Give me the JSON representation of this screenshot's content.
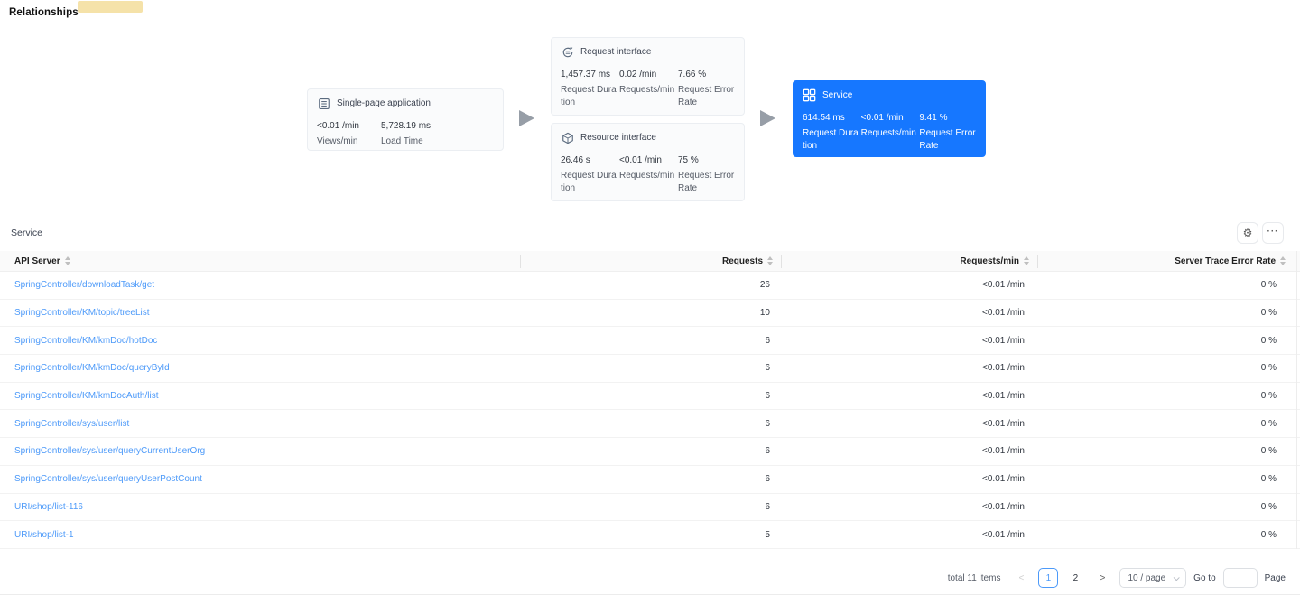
{
  "page": {
    "title": "Relationships"
  },
  "topology": {
    "nodes": [
      {
        "id": "spa",
        "icon": "document-icon",
        "title": "Single-page application",
        "metrics": [
          {
            "value": "<0.01 /min",
            "label": "Views/min"
          },
          {
            "value": "5,728.19 ms",
            "label": "Load Time"
          }
        ]
      },
      {
        "id": "request-interface",
        "icon": "sync-icon",
        "title": "Request interface",
        "metrics": [
          {
            "value": "1,457.37 ms",
            "label": "Request Duration"
          },
          {
            "value": "0.02 /min",
            "label": "Requests/min"
          },
          {
            "value": "7.66 %",
            "label": "Request Error Rate"
          }
        ]
      },
      {
        "id": "resource-interface",
        "icon": "cube-icon",
        "title": "Resource interface",
        "metrics": [
          {
            "value": "26.46 s",
            "label": "Request Duration"
          },
          {
            "value": "<0.01 /min",
            "label": "Requests/min"
          },
          {
            "value": "75 %",
            "label": "Request Error Rate"
          }
        ]
      },
      {
        "id": "service",
        "icon": "grid-icon",
        "title": "Service",
        "selected": true,
        "metrics": [
          {
            "value": "614.54 ms",
            "label": "Request Duration"
          },
          {
            "value": "<0.01 /min",
            "label": "Requests/min"
          },
          {
            "value": "9.41 %",
            "label": "Request Error Rate"
          }
        ]
      }
    ]
  },
  "section": {
    "title": "Service",
    "icons": {
      "settings": "⚙",
      "more": "···"
    }
  },
  "table": {
    "columns": [
      "API Server",
      "Requests",
      "Requests/min",
      "Server Trace Error Rate"
    ],
    "rows": [
      {
        "api": "SpringController/downloadTask/get",
        "requests": "26",
        "rpm": "<0.01 /min",
        "error": "0 %"
      },
      {
        "api": "SpringController/KM/topic/treeList",
        "requests": "10",
        "rpm": "<0.01 /min",
        "error": "0 %"
      },
      {
        "api": "SpringController/KM/kmDoc/hotDoc",
        "requests": "6",
        "rpm": "<0.01 /min",
        "error": "0 %"
      },
      {
        "api": "SpringController/KM/kmDoc/queryById",
        "requests": "6",
        "rpm": "<0.01 /min",
        "error": "0 %"
      },
      {
        "api": "SpringController/KM/kmDocAuth/list",
        "requests": "6",
        "rpm": "<0.01 /min",
        "error": "0 %"
      },
      {
        "api": "SpringController/sys/user/list",
        "requests": "6",
        "rpm": "<0.01 /min",
        "error": "0 %"
      },
      {
        "api": "SpringController/sys/user/queryCurrentUserOrg",
        "requests": "6",
        "rpm": "<0.01 /min",
        "error": "0 %"
      },
      {
        "api": "SpringController/sys/user/queryUserPostCount",
        "requests": "6",
        "rpm": "<0.01 /min",
        "error": "0 %"
      },
      {
        "api": "URI/shop/list-116",
        "requests": "6",
        "rpm": "<0.01 /min",
        "error": "0 %"
      },
      {
        "api": "URI/shop/list-1",
        "requests": "5",
        "rpm": "<0.01 /min",
        "error": "0 %"
      }
    ]
  },
  "pagination": {
    "total_text": "total 11 items",
    "prev_label": "<",
    "pages": [
      "1",
      "2"
    ],
    "active_page": "1",
    "next_label": ">",
    "page_size": "10 / page",
    "goto_label": "Go to",
    "goto_value": "",
    "page_label": "Page"
  },
  "colors": {
    "primary_blue": "#1677ff",
    "link_blue": "#4d9af9",
    "card_bg": "#fafbfc",
    "header_bg": "#fafafa",
    "arrow_gray": "#979ea7"
  }
}
